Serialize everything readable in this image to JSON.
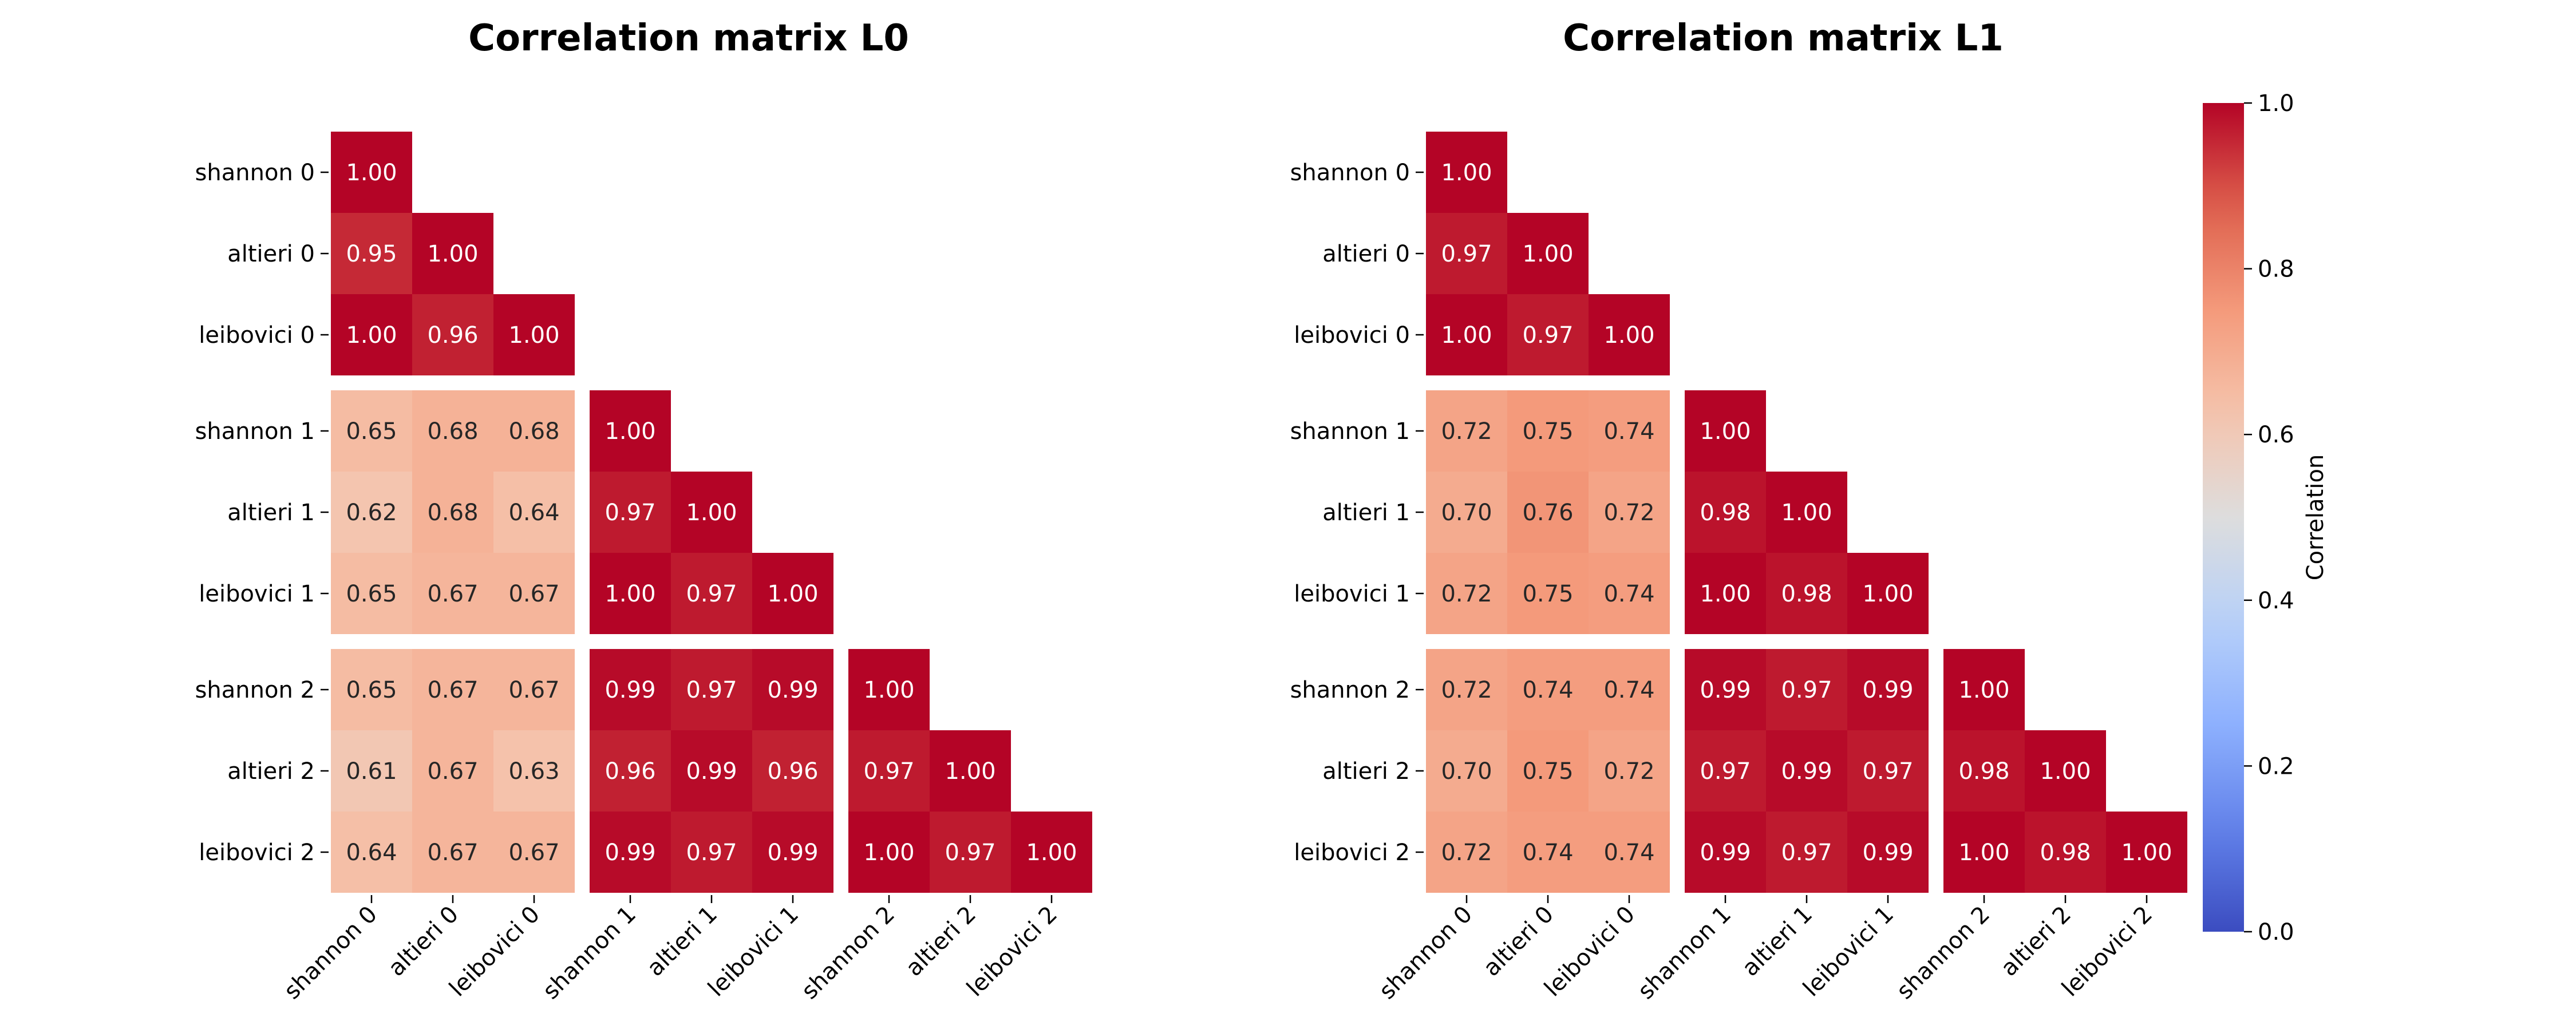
{
  "chart_data": [
    {
      "type": "heatmap",
      "title": "Correlation matrix L0",
      "labels": [
        "shannon 0",
        "altieri 0",
        "leibovici 0",
        "shannon 1",
        "altieri 1",
        "leibovici 1",
        "shannon 2",
        "altieri 2",
        "leibovici 2"
      ],
      "mask": "lower-triangle",
      "values": [
        [
          1.0
        ],
        [
          0.95,
          1.0
        ],
        [
          1.0,
          0.96,
          1.0
        ],
        [
          0.65,
          0.68,
          0.68,
          1.0
        ],
        [
          0.62,
          0.68,
          0.64,
          0.97,
          1.0
        ],
        [
          0.65,
          0.67,
          0.67,
          1.0,
          0.97,
          1.0
        ],
        [
          0.65,
          0.67,
          0.67,
          0.99,
          0.97,
          0.99,
          1.0
        ],
        [
          0.61,
          0.67,
          0.63,
          0.96,
          0.99,
          0.96,
          0.97,
          1.0
        ],
        [
          0.64,
          0.67,
          0.67,
          0.99,
          0.97,
          0.99,
          1.0,
          0.97,
          1.0
        ]
      ],
      "value_format": "0.00",
      "group_size": 3
    },
    {
      "type": "heatmap",
      "title": "Correlation matrix L1",
      "labels": [
        "shannon 0",
        "altieri 0",
        "leibovici 0",
        "shannon 1",
        "altieri 1",
        "leibovici 1",
        "shannon 2",
        "altieri 2",
        "leibovici 2"
      ],
      "mask": "lower-triangle",
      "values": [
        [
          1.0
        ],
        [
          0.97,
          1.0
        ],
        [
          1.0,
          0.97,
          1.0
        ],
        [
          0.72,
          0.75,
          0.74,
          1.0
        ],
        [
          0.7,
          0.76,
          0.72,
          0.98,
          1.0
        ],
        [
          0.72,
          0.75,
          0.74,
          1.0,
          0.98,
          1.0
        ],
        [
          0.72,
          0.74,
          0.74,
          0.99,
          0.97,
          0.99,
          1.0
        ],
        [
          0.7,
          0.75,
          0.72,
          0.97,
          0.99,
          0.97,
          0.98,
          1.0
        ],
        [
          0.72,
          0.74,
          0.74,
          0.99,
          0.97,
          0.99,
          1.0,
          0.98,
          1.0
        ]
      ],
      "value_format": "0.00",
      "group_size": 3
    }
  ],
  "colorbar": {
    "label": "Correlation",
    "colormap": "coolwarm",
    "vmin": 0.0,
    "vmax": 1.0,
    "ticks": [
      "0.0",
      "0.2",
      "0.4",
      "0.6",
      "0.8",
      "1.0"
    ]
  }
}
